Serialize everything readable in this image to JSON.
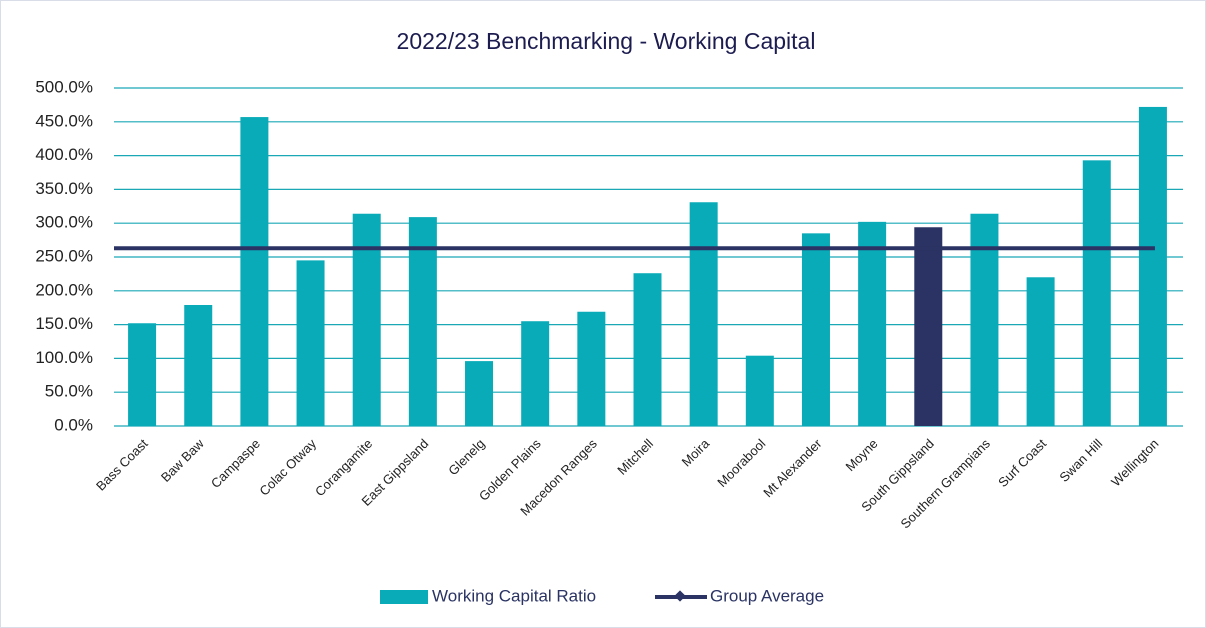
{
  "chart_data": {
    "type": "bar",
    "title": "2022/23 Benchmarking - Working Capital",
    "categories": [
      "Bass Coast",
      "Baw Baw",
      "Campaspe",
      "Colac Otway",
      "Corangamite",
      "East Gippsland",
      "Glenelg",
      "Golden Plains",
      "Macedon Ranges",
      "Mitchell",
      "Moira",
      "Moorabool",
      "Mt Alexander",
      "Moyne",
      "South Gippsland",
      "Southern Grampians",
      "Surf Coast",
      "Swan Hill",
      "Wellington"
    ],
    "series": [
      {
        "name": "Working Capital Ratio",
        "color": "#0aabb8",
        "values": [
          152,
          179,
          457,
          245,
          314,
          309,
          96,
          155,
          169,
          226,
          331,
          104,
          285,
          302,
          294,
          314,
          220,
          393,
          472
        ]
      },
      {
        "name": "Group Average",
        "color": "#2a3363",
        "type": "line",
        "values": [
          263,
          263,
          263,
          263,
          263,
          263,
          263,
          263,
          263,
          263,
          263,
          263,
          263,
          263,
          263,
          263,
          263,
          263,
          263
        ]
      }
    ],
    "highlight_category": "South Gippsland",
    "highlight_color": "#2a3363",
    "ylim": [
      0,
      500
    ],
    "yticks": [
      {
        "value": 0,
        "label": "0.0%"
      },
      {
        "value": 50,
        "label": "50.0%"
      },
      {
        "value": 100,
        "label": "100.0%"
      },
      {
        "value": 150,
        "label": "150.0%"
      },
      {
        "value": 200,
        "label": "200.0%"
      },
      {
        "value": 250,
        "label": "250.0%"
      },
      {
        "value": 300,
        "label": "300.0%"
      },
      {
        "value": 350,
        "label": "350.0%"
      },
      {
        "value": 400,
        "label": "400.0%"
      },
      {
        "value": 450,
        "label": "450.0%"
      },
      {
        "value": 500,
        "label": "500.0%"
      }
    ],
    "grid": true,
    "legend": "bottom"
  }
}
